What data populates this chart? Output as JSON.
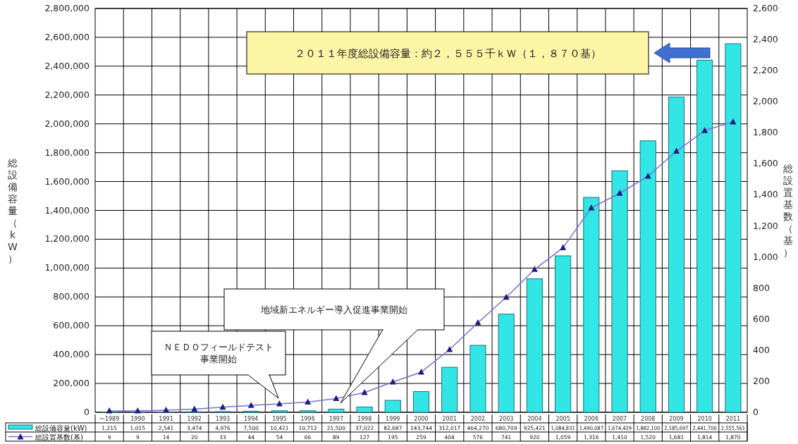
{
  "chart_data": {
    "type": "bar",
    "categories": [
      "〜1989",
      "1990",
      "1991",
      "1992",
      "1993",
      "1994",
      "1995",
      "1996",
      "1997",
      "1998",
      "1999",
      "2000",
      "2001",
      "2002",
      "2003",
      "2004",
      "2005",
      "2006",
      "2007",
      "2008",
      "2009",
      "2010",
      "2011"
    ],
    "ylabel": "総設備容量（kW）",
    "y2label": "総設置基数（基）",
    "series": [
      {
        "name": "総設備容量(kW)",
        "color": "#33e6e6",
        "values": [
          1215,
          1015,
          2541,
          3474,
          4976,
          7500,
          10421,
          10712,
          21500,
          37022,
          82687,
          143744,
          312017,
          464270,
          680709,
          925421,
          1084831,
          1490087,
          1674429,
          1882100,
          2185697,
          2441700,
          2555561
        ],
        "value_labels": [
          "1,215",
          "1,015",
          "2,541",
          "3,474",
          "4,976",
          "7,500",
          "10,421",
          "10,712",
          "21,500",
          "37,022",
          "82,687",
          "143,744",
          "312,017",
          "464,270",
          "680,709",
          "925,421",
          "1,084,831",
          "1,490,087",
          "1,674,429",
          "1,882,100",
          "2,185,697",
          "2,441,700",
          "2,555,561"
        ]
      },
      {
        "name": "総設置基数(基)",
        "type": "line",
        "axis": "y2",
        "color": "#7b6fd0",
        "marker": "triangle",
        "values": [
          9,
          9,
          14,
          20,
          33,
          44,
          54,
          66,
          89,
          127,
          195,
          259,
          404,
          576,
          741,
          920,
          1059,
          1316,
          1410,
          1520,
          1681,
          1814,
          1870
        ],
        "value_labels": [
          "9",
          "9",
          "14",
          "20",
          "33",
          "44",
          "54",
          "66",
          "89",
          "127",
          "195",
          "259",
          "404",
          "576",
          "741",
          "920",
          "1,059",
          "1,316",
          "1,410",
          "1,520",
          "1,681",
          "1,814",
          "1,870"
        ]
      }
    ],
    "ylim": [
      0,
      2800000
    ],
    "yticks": [
      {
        "value": 0,
        "label": "0"
      },
      {
        "value": 200000,
        "label": "200,000"
      },
      {
        "value": 400000,
        "label": "400,000"
      },
      {
        "value": 600000,
        "label": "600,000"
      },
      {
        "value": 800000,
        "label": "800,000"
      },
      {
        "value": 1000000,
        "label": "1,000,000"
      },
      {
        "value": 1200000,
        "label": "1,200,000"
      },
      {
        "value": 1400000,
        "label": "1,400,000"
      },
      {
        "value": 1600000,
        "label": "1,600,000"
      },
      {
        "value": 1800000,
        "label": "1,800,000"
      },
      {
        "value": 2000000,
        "label": "2,000,000"
      },
      {
        "value": 2200000,
        "label": "2,200,000"
      },
      {
        "value": 2400000,
        "label": "2,400,000"
      },
      {
        "value": 2600000,
        "label": "2,600,000"
      },
      {
        "value": 2800000,
        "label": "2,800,000"
      }
    ],
    "y2lim": [
      0,
      2600
    ],
    "y2ticks": [
      0,
      {
        "value": 200,
        "label": "200"
      },
      {
        "value": 400,
        "label": "400"
      },
      {
        "value": 600,
        "label": "600"
      },
      {
        "value": 800,
        "label": "800"
      },
      {
        "value": 1000,
        "label": "1,000"
      },
      {
        "value": 1200,
        "label": "1,200"
      },
      {
        "value": 1400,
        "label": "1,400"
      },
      {
        "value": 1600,
        "label": "1,600"
      },
      {
        "value": 1800,
        "label": "1,800"
      },
      {
        "value": 2000,
        "label": "2,000"
      },
      {
        "value": 2200,
        "label": "2,200"
      },
      {
        "value": 2400,
        "label": "2,400"
      },
      {
        "value": 2600,
        "label": "2,600"
      }
    ],
    "grid": true,
    "legend": "bottom",
    "annotations": [
      "２０１１年度総設備容量：約２，５５５千ｋＷ（１，８７０基）",
      "ＮＥＤＯフィールドテスト事業開始",
      "地域新エネルギー導入促進事業開始"
    ]
  }
}
